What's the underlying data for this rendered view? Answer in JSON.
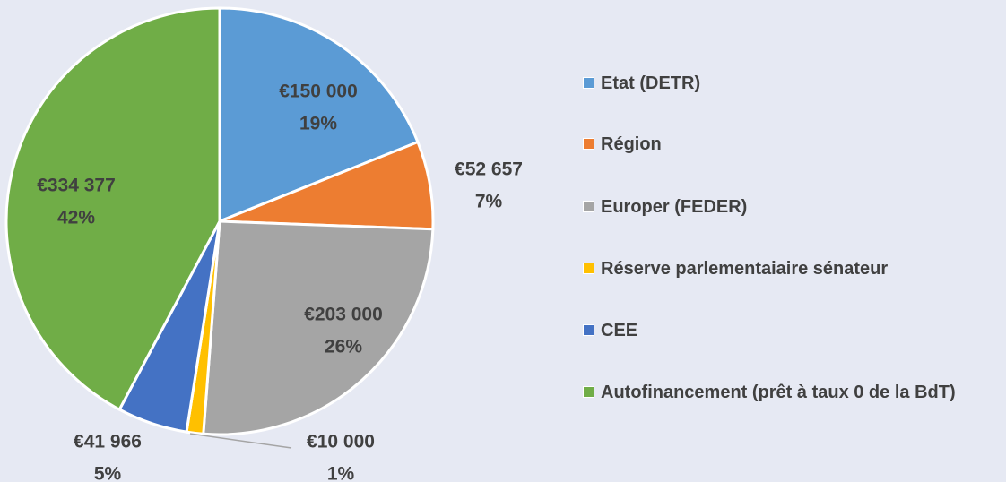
{
  "chart_data": {
    "type": "pie",
    "categories": [
      "Etat (DETR)",
      "Région",
      "Europer (FEDER)",
      "Réserve parlementaiaire sénateur",
      "CEE",
      "Autofinancement (prêt à taux 0 de la BdT)"
    ],
    "values": [
      150000,
      52657,
      203000,
      10000,
      41966,
      334377
    ],
    "value_labels": [
      "€150 000",
      "€52 657",
      "€203 000",
      "€10 000",
      "€41 966",
      "€334 377"
    ],
    "percent_labels": [
      "19%",
      "7%",
      "26%",
      "1%",
      "5%",
      "42%"
    ],
    "colors": [
      "#5b9bd5",
      "#ed7d31",
      "#a5a5a5",
      "#ffc000",
      "#4472c4",
      "#70ad47"
    ],
    "legend": "right"
  }
}
